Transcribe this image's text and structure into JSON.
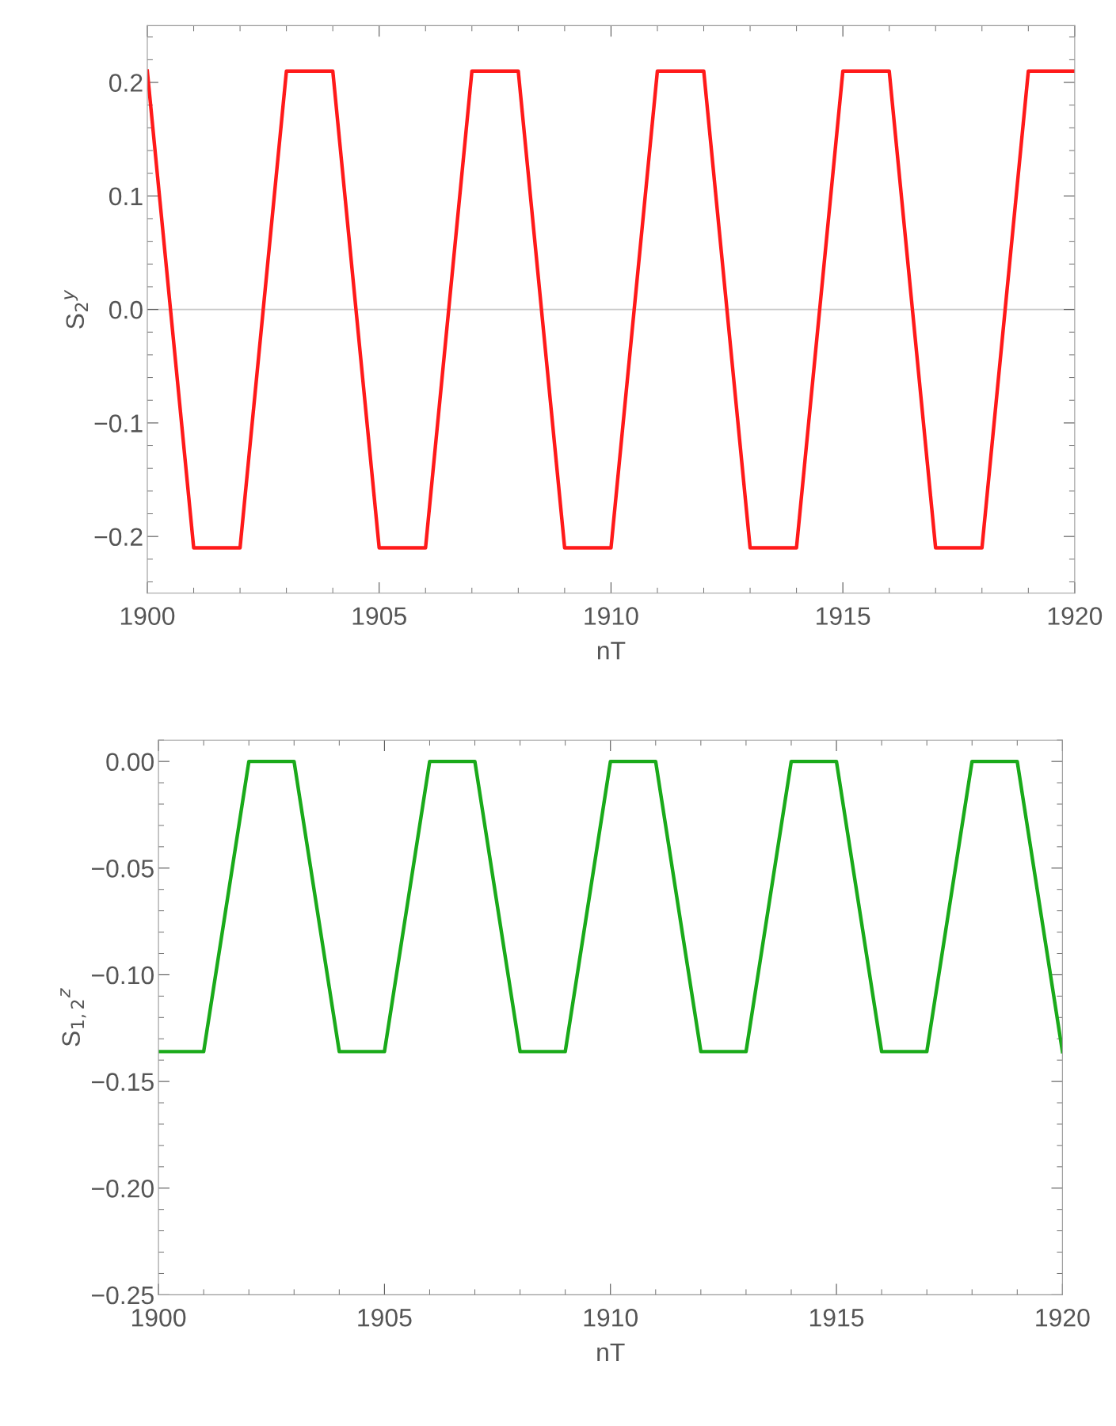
{
  "chart_data": [
    {
      "type": "line",
      "xlabel": "nT",
      "ylabel": "S$_{2}$$^{y}$",
      "x": [
        1900,
        1901,
        1902,
        1903,
        1904,
        1905,
        1906,
        1907,
        1908,
        1909,
        1910,
        1911,
        1912,
        1913,
        1914,
        1915,
        1916,
        1917,
        1918,
        1919,
        1920
      ],
      "series": [
        {
          "color": "#ff1a1a",
          "values": [
            0.21,
            -0.21,
            -0.21,
            0.21,
            0.21,
            -0.21,
            -0.21,
            0.21,
            0.21,
            -0.21,
            -0.21,
            0.21,
            0.21,
            -0.21,
            -0.21,
            0.21,
            0.21,
            -0.21,
            -0.21,
            0.21,
            0.21
          ]
        }
      ],
      "xlim": [
        1900,
        1920
      ],
      "xticks": [
        1900,
        1905,
        1910,
        1915,
        1920
      ],
      "ylim": [
        -0.25,
        0.25
      ],
      "yticks": [
        {
          "value": -0.2,
          "label": "−0.2"
        },
        {
          "value": -0.1,
          "label": "−0.1"
        },
        {
          "value": 0,
          "label": "0.0"
        },
        0.1,
        0.2
      ],
      "ref_lines": [
        {
          "axis": "y",
          "value": 0,
          "color": "#c8c8c8"
        }
      ],
      "grid": false,
      "legend": false,
      "marker": "none",
      "line_style": "solid"
    },
    {
      "type": "line",
      "xlabel": "nT",
      "ylabel": "S$_{1,2}$$^{z}$",
      "x": [
        1900,
        1901,
        1902,
        1903,
        1904,
        1905,
        1906,
        1907,
        1908,
        1909,
        1910,
        1911,
        1912,
        1913,
        1914,
        1915,
        1916,
        1917,
        1918,
        1919,
        1920
      ],
      "series": [
        {
          "color": "#1aaa1a",
          "values": [
            -0.136,
            -0.136,
            0,
            0,
            -0.136,
            -0.136,
            0,
            0,
            -0.136,
            -0.136,
            0,
            0,
            -0.136,
            -0.136,
            0,
            0,
            -0.136,
            -0.136,
            0,
            0,
            -0.136
          ]
        }
      ],
      "xlim": [
        1900,
        1920
      ],
      "xticks": [
        1900,
        1905,
        1910,
        1915,
        1920
      ],
      "ylim": [
        -0.25,
        0.01
      ],
      "yticks": [
        {
          "value": -0.25,
          "label": "−0.25"
        },
        {
          "value": -0.2,
          "label": "−0.20"
        },
        {
          "value": -0.15,
          "label": "−0.15"
        },
        {
          "value": -0.1,
          "label": "−0.10"
        },
        {
          "value": -0.05,
          "label": "−0.05"
        },
        {
          "value": 0,
          "label": "0.00"
        }
      ],
      "grid": false,
      "legend": false,
      "marker": "none",
      "line_style": "solid"
    }
  ]
}
